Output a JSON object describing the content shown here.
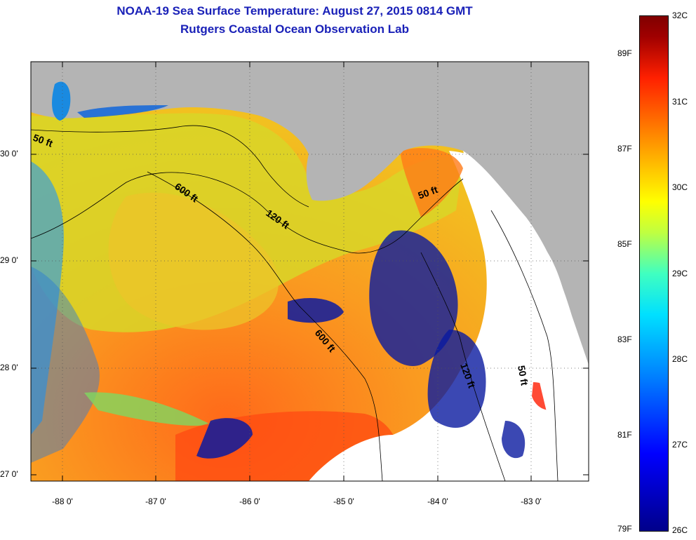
{
  "title": {
    "line1": "NOAA-19 Sea Surface Temperature:  August 27, 2015 0814 GMT",
    "line2": "Rutgers Coastal Ocean Observation Lab"
  },
  "map": {
    "lat_labels": [
      "30 0'",
      "29 0'",
      "28 0'",
      "27 0'"
    ],
    "lon_labels": [
      "-88 0'",
      "-87 0'",
      "-86 0'",
      "-85 0'",
      "-84 0'",
      "-83 0'"
    ],
    "contours": [
      {
        "label": "50 ft"
      },
      {
        "label": "600 ft"
      },
      {
        "label": "120 ft"
      },
      {
        "label": "50 ft"
      },
      {
        "label": "600 ft"
      },
      {
        "label": "120 ft"
      },
      {
        "label": "50 ft"
      }
    ]
  },
  "colorbar": {
    "fahrenheit_labels": [
      "89F",
      "87F",
      "85F",
      "83F",
      "81F",
      "79F"
    ],
    "celsius_labels": [
      "32C",
      "31C",
      "30C",
      "29C",
      "28C",
      "27C",
      "26C"
    ],
    "min_c": 26,
    "max_c": 32
  },
  "colors": {
    "title": "#1a21b8",
    "land": "#b4b4b4",
    "cloud": "#ffffff",
    "ocean_warm": "#f5a020"
  }
}
